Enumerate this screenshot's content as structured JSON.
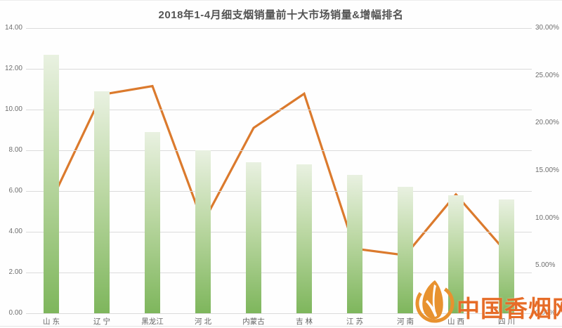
{
  "chart_data": {
    "type": "combo-bar-line",
    "title": "2018年1-4月细支烟销量前十大市场销量&增幅排名",
    "categories": [
      "山 东",
      "辽 宁",
      "黑龙江",
      "河 北",
      "内蒙古",
      "吉 林",
      "江 苏",
      "河 南",
      "山 西",
      "四 川"
    ],
    "series": [
      {
        "name": "销量",
        "type": "bar",
        "axis": "left",
        "values": [
          12.7,
          10.9,
          8.9,
          8.0,
          7.4,
          7.3,
          6.8,
          6.2,
          5.8,
          5.6
        ]
      },
      {
        "name": "增幅",
        "type": "line",
        "axis": "right",
        "values": [
          11.8,
          23.0,
          23.9,
          9.5,
          19.5,
          23.1,
          6.8,
          6.1,
          12.5,
          6.4
        ]
      }
    ],
    "left_axis": {
      "min": 0,
      "max": 14,
      "ticks": [
        "14.00",
        "12.00",
        "10.00",
        "8.00",
        "6.00",
        "4.00",
        "2.00",
        "0.00"
      ]
    },
    "right_axis": {
      "min": 0,
      "max": 30,
      "ticks": [
        "30.00%",
        "25.00%",
        "20.00%",
        "15.00%",
        "10.00%",
        "5.00%",
        "0.00%"
      ]
    },
    "grid": true,
    "legend": "none",
    "colors": {
      "bar_top": "#e9f1e1",
      "bar_bottom": "#7eb65c",
      "line": "#db7a2d",
      "gridline": "#dbdbdb",
      "axis_text": "#6e6e6e",
      "title_text": "#545454"
    }
  },
  "watermark": {
    "text": "中国香烟网",
    "logo": "leaf-flame-logo",
    "color": "#e8922f"
  }
}
